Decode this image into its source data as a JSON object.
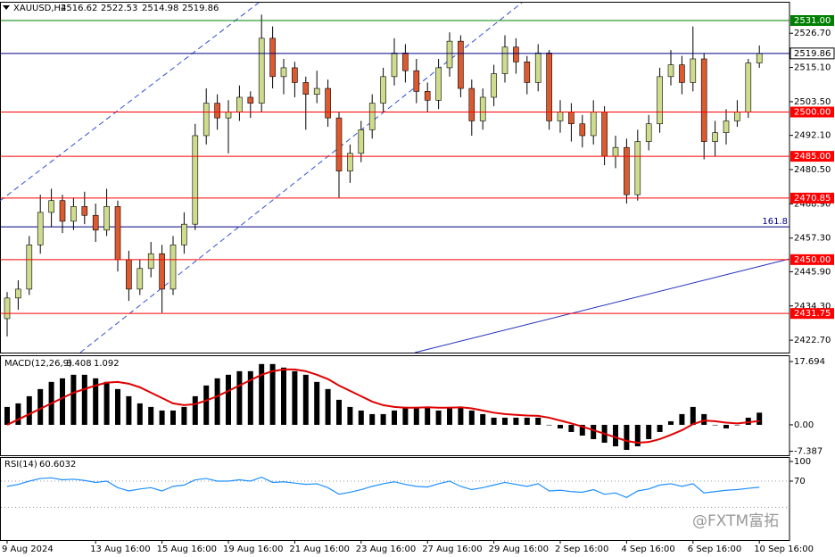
{
  "chart_data": {
    "type": "candlestick",
    "title": "XAUUSD,H4",
    "categories": [
      "9 Aug 2024",
      null,
      null,
      null,
      null,
      null,
      null,
      null,
      "13 Aug 16:00",
      null,
      null,
      null,
      null,
      null,
      "15 Aug 16:00",
      null,
      null,
      null,
      null,
      null,
      "19 Aug 16:00",
      null,
      null,
      null,
      null,
      null,
      "21 Aug 16:00",
      null,
      null,
      null,
      null,
      null,
      "23 Aug 16:00",
      null,
      null,
      null,
      null,
      null,
      "27 Aug 16:00",
      null,
      null,
      null,
      null,
      null,
      "29 Aug 16:00",
      null,
      null,
      null,
      null,
      null,
      "2 Sep 16:00",
      null,
      null,
      null,
      null,
      null,
      "4 Sep 16:00",
      null,
      null,
      null,
      null,
      null,
      "6 Sep 16:00",
      null,
      null,
      null,
      null,
      null,
      "10 Sep 16:00"
    ],
    "candles": [
      [
        2430,
        2439,
        2424,
        2437
      ],
      [
        2437,
        2443,
        2433,
        2440
      ],
      [
        2440,
        2458,
        2438,
        2455
      ],
      [
        2455,
        2472,
        2452,
        2466
      ],
      [
        2466,
        2474,
        2461,
        2470
      ],
      [
        2470,
        2472,
        2459,
        2463
      ],
      [
        2463,
        2471,
        2460,
        2468
      ],
      [
        2468,
        2473,
        2462,
        2465
      ],
      [
        2465,
        2469,
        2456,
        2460
      ],
      [
        2460,
        2474,
        2458,
        2468
      ],
      [
        2468,
        2470,
        2446,
        2450
      ],
      [
        2450,
        2453,
        2436,
        2440
      ],
      [
        2440,
        2450,
        2438,
        2447
      ],
      [
        2447,
        2456,
        2444,
        2452
      ],
      [
        2452,
        2455,
        2432,
        2440
      ],
      [
        2440,
        2458,
        2438,
        2455
      ],
      [
        2455,
        2466,
        2452,
        2462
      ],
      [
        2462,
        2496,
        2460,
        2492
      ],
      [
        2492,
        2508,
        2489,
        2503
      ],
      [
        2503,
        2506,
        2494,
        2498
      ],
      [
        2498,
        2504,
        2486,
        2500
      ],
      [
        2500,
        2509,
        2497,
        2505
      ],
      [
        2505,
        2507,
        2498,
        2503
      ],
      [
        2503,
        2533,
        2500,
        2525
      ],
      [
        2525,
        2529,
        2508,
        2512
      ],
      [
        2512,
        2518,
        2506,
        2515
      ],
      [
        2515,
        2517,
        2505,
        2510
      ],
      [
        2510,
        2512,
        2494,
        2506
      ],
      [
        2506,
        2514,
        2503,
        2508
      ],
      [
        2508,
        2511,
        2495,
        2498
      ],
      [
        2498,
        2500,
        2471,
        2480
      ],
      [
        2480,
        2489,
        2476,
        2486
      ],
      [
        2486,
        2497,
        2483,
        2494
      ],
      [
        2494,
        2506,
        2491,
        2503
      ],
      [
        2503,
        2515,
        2500,
        2512
      ],
      [
        2512,
        2525,
        2509,
        2520
      ],
      [
        2520,
        2523,
        2510,
        2514
      ],
      [
        2514,
        2518,
        2503,
        2507
      ],
      [
        2507,
        2510,
        2500,
        2504
      ],
      [
        2504,
        2518,
        2501,
        2515
      ],
      [
        2515,
        2527,
        2512,
        2524
      ],
      [
        2524,
        2526,
        2505,
        2508
      ],
      [
        2508,
        2511,
        2492,
        2497
      ],
      [
        2497,
        2508,
        2494,
        2505
      ],
      [
        2505,
        2516,
        2502,
        2513
      ],
      [
        2513,
        2526,
        2510,
        2522
      ],
      [
        2522,
        2525,
        2513,
        2517
      ],
      [
        2517,
        2519,
        2506,
        2510
      ],
      [
        2510,
        2523,
        2507,
        2520
      ],
      [
        2520,
        2521,
        2494,
        2497
      ],
      [
        2497,
        2504,
        2493,
        2500
      ],
      [
        2500,
        2503,
        2490,
        2496
      ],
      [
        2496,
        2499,
        2488,
        2492
      ],
      [
        2492,
        2504,
        2489,
        2500
      ],
      [
        2500,
        2502,
        2482,
        2485
      ],
      [
        2485,
        2492,
        2481,
        2488
      ],
      [
        2488,
        2491,
        2469,
        2472
      ],
      [
        2472,
        2494,
        2470,
        2490
      ],
      [
        2490,
        2499,
        2487,
        2496
      ],
      [
        2496,
        2515,
        2493,
        2512
      ],
      [
        2512,
        2521,
        2509,
        2516
      ],
      [
        2516,
        2519,
        2506,
        2510
      ],
      [
        2510,
        2529,
        2507,
        2518
      ],
      [
        2518,
        2520,
        2484,
        2490
      ],
      [
        2490,
        2497,
        2485,
        2493
      ],
      [
        2493,
        2501,
        2489,
        2497
      ],
      [
        2497,
        2504,
        2495,
        2500
      ],
      [
        2500,
        2518,
        2498,
        2516.62
      ],
      [
        2516.62,
        2522.53,
        2514.98,
        2519.86
      ]
    ],
    "up_color": "#cfdc8e",
    "down_color": "#dc5a30",
    "ylim": [
      2418.5,
      2537.05
    ],
    "yticks": [
      {
        "value": 2526.7,
        "label": "2526.70"
      },
      {
        "value": 2515.1,
        "label": "2515.10"
      },
      {
        "value": 2503.5,
        "label": "2503.50"
      },
      {
        "value": 2492.1,
        "label": "2492.10"
      },
      {
        "value": 2480.5,
        "label": "2480.50"
      },
      {
        "value": 2468.9,
        "label": "2468.90"
      },
      {
        "value": 2457.3,
        "label": "2457.30"
      },
      {
        "value": 2445.9,
        "label": "2445.90"
      },
      {
        "value": 2434.3,
        "label": "2434.30"
      },
      {
        "value": 2422.7,
        "label": "2422.70"
      }
    ],
    "levels": [
      {
        "value": 2531,
        "label": "2531.00",
        "color": "#008000"
      },
      {
        "value": 2500,
        "label": "2500.00",
        "color": "#ff0000"
      },
      {
        "value": 2485,
        "label": "2485.00",
        "color": "#ff0000"
      },
      {
        "value": 2470.85,
        "label": "2470.85",
        "color": "#ff0000"
      },
      {
        "value": 2450,
        "label": "2450.00",
        "color": "#ff0000"
      },
      {
        "value": 2431.75,
        "label": "2431.75",
        "color": "#ff0000"
      }
    ],
    "current_price_color": "#000080",
    "fib_level": {
      "value": 2461.1,
      "label": "161.8",
      "color": "#000080"
    },
    "macd": {
      "title": "MACD(12,26,9)",
      "histogram": [
        5,
        6,
        8,
        10,
        12,
        13,
        14,
        14,
        13,
        12,
        10,
        8,
        6,
        5,
        4,
        4,
        5,
        8,
        11,
        13,
        14,
        15,
        15,
        17,
        17,
        16,
        15,
        14,
        12,
        10,
        7,
        5,
        4,
        3,
        3,
        4,
        5,
        5,
        5,
        4,
        5,
        5,
        4,
        3,
        2,
        2,
        2,
        2,
        2,
        0,
        -1,
        -2,
        -3,
        -4,
        -5,
        -6,
        -7,
        -6,
        -4,
        -2,
        1,
        3,
        5,
        3,
        0,
        -1,
        0,
        2,
        3.408
      ],
      "signal": [
        0,
        1.5,
        3,
        4.5,
        6,
        7.5,
        9,
        10,
        11,
        11.8,
        12,
        11.5,
        10.5,
        9,
        7.5,
        6,
        5.5,
        5.8,
        6.8,
        8,
        9.5,
        11,
        12.5,
        14,
        15,
        15.5,
        15.5,
        15,
        14,
        12.8,
        11,
        9.5,
        8,
        6.5,
        5.5,
        5,
        4.8,
        4.8,
        4.9,
        4.8,
        4.8,
        4.9,
        4.6,
        4,
        3.4,
        3,
        2.8,
        2.6,
        2.5,
        2,
        1.2,
        0.4,
        -0.5,
        -1.5,
        -2.5,
        -3.5,
        -4.5,
        -5,
        -4.8,
        -4,
        -2.8,
        -1.5,
        0.2,
        1.2,
        1,
        0.6,
        0.4,
        0.7,
        1.092
      ],
      "histogram_color": "#000000",
      "signal_color": "#e00000",
      "ylim": [
        -8.5,
        19.2
      ],
      "yticks": [
        17.694,
        {
          "value": 0,
          "label": "0.00"
        },
        -7.387
      ]
    },
    "rsi": {
      "title": "RSI(14)",
      "values": [
        62,
        65,
        70,
        74,
        75,
        72,
        73,
        71,
        68,
        70,
        60,
        55,
        58,
        60,
        55,
        62,
        64,
        72,
        74,
        70,
        70,
        72,
        70,
        76,
        68,
        69,
        67,
        65,
        66,
        60,
        50,
        53,
        57,
        62,
        66,
        69,
        65,
        62,
        61,
        66,
        70,
        62,
        57,
        60,
        64,
        68,
        65,
        62,
        66,
        55,
        56,
        54,
        53,
        57,
        50,
        52,
        45,
        55,
        58,
        64,
        66,
        62,
        66,
        52,
        54,
        56,
        57,
        59,
        60.6032
      ],
      "color": "#1e90ff",
      "ylim": [
        -20,
        106.8
      ],
      "yticks": [
        100,
        70
      ],
      "levels": [
        70,
        30
      ]
    },
    "watermark": "@FXTM富拓"
  }
}
